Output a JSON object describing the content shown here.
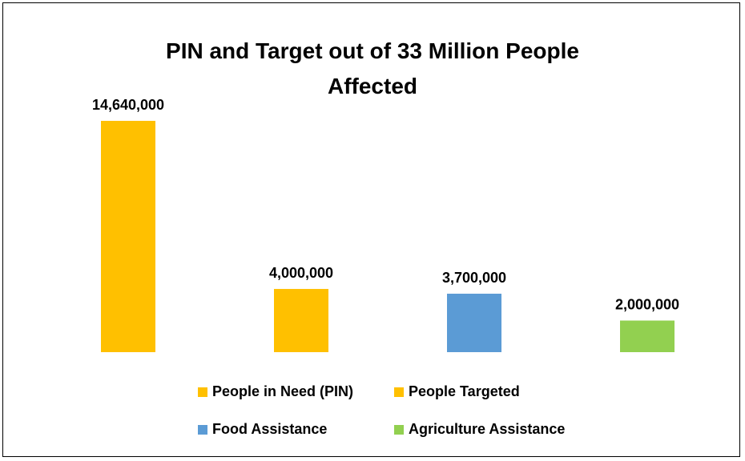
{
  "chart_data": {
    "type": "bar",
    "title": "PIN and Target out of 33 Million People Affected",
    "title_lines": [
      "PIN and Target out of 33 Million People",
      "Affected"
    ],
    "categories": [
      "People in Need (PIN)",
      "People Targeted",
      "Food Assistance",
      "Agriculture Assistance"
    ],
    "values": [
      14640000,
      4000000,
      3700000,
      2000000
    ],
    "value_labels": [
      "14,640,000",
      "4,000,000",
      "3,700,000",
      "2,000,000"
    ],
    "colors": [
      "#FFC000",
      "#FFC000",
      "#5B9BD5",
      "#92D050"
    ],
    "ylim": [
      0,
      14640000
    ],
    "grid": false,
    "legend_position": "bottom",
    "xlabel": "",
    "ylabel": ""
  }
}
